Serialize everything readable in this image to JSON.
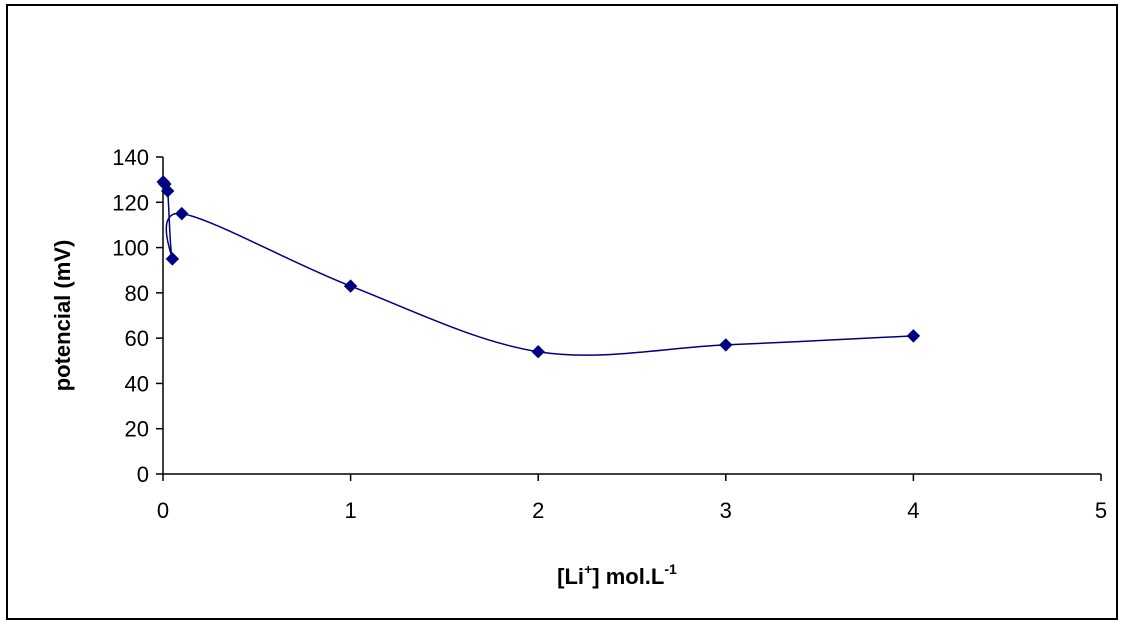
{
  "chart_data": {
    "type": "scatter",
    "title": "",
    "xlabel_parts": [
      "[Li",
      "+",
      "] mol.L",
      "-1"
    ],
    "ylabel": "potencial (mV)",
    "xlim": [
      0,
      5
    ],
    "ylim": [
      0,
      140
    ],
    "x_ticks": [
      0,
      1,
      2,
      3,
      4,
      5
    ],
    "y_ticks": [
      0,
      20,
      40,
      60,
      80,
      100,
      120,
      140
    ],
    "grid": false,
    "legend": "none",
    "smooth_line": true,
    "series": [
      {
        "color": "#000080",
        "marker": "diamond",
        "points": [
          {
            "x": 0.001,
            "y": 129
          },
          {
            "x": 0.01,
            "y": 128
          },
          {
            "x": 0.025,
            "y": 125
          },
          {
            "x": 0.05,
            "y": 95
          },
          {
            "x": 0.1,
            "y": 115
          },
          {
            "x": 1,
            "y": 83
          },
          {
            "x": 2,
            "y": 54
          },
          {
            "x": 3,
            "y": 57
          },
          {
            "x": 4,
            "y": 61
          }
        ]
      }
    ]
  }
}
